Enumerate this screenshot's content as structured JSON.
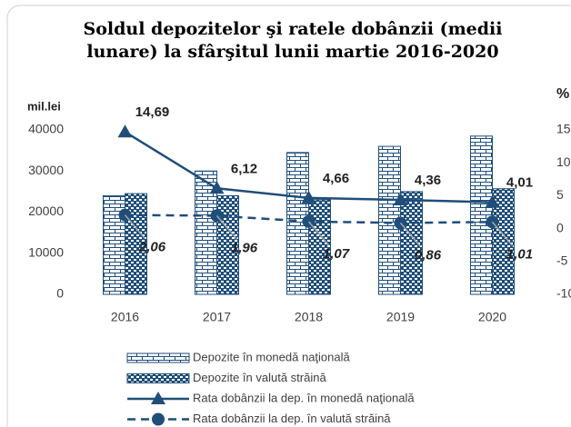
{
  "chart_data": {
    "type": "bar-line",
    "title": [
      "Soldul depozitelor şi ratele dobânzii (medii",
      "lunare) la sfârşitul lunii martie 2016-2020"
    ],
    "y_label": "mil.lei",
    "y2_label": "%",
    "categories": [
      "2016",
      "2017",
      "2018",
      "2019",
      "2020"
    ],
    "ylim": [
      0,
      40000
    ],
    "yticks": [
      0,
      10000,
      20000,
      30000,
      40000
    ],
    "y2lim": [
      -10,
      15
    ],
    "y2ticks": [
      -10,
      -5,
      0,
      5,
      10,
      15
    ],
    "series": [
      {
        "name": "Depozite în monedă naţională",
        "type": "bar",
        "pattern": "brick",
        "color": "#1f4e79",
        "values": [
          24000,
          30000,
          34500,
          36000,
          38500
        ]
      },
      {
        "name": "Depozite în valută străină",
        "type": "bar",
        "pattern": "weave",
        "color": "#1f4e79",
        "values": [
          24500,
          24000,
          23000,
          25000,
          25700
        ]
      },
      {
        "name": "Rata dobânzii la dep. în monedă naţională",
        "type": "line",
        "axis": "y2",
        "marker": "triangle",
        "dashed": false,
        "color": "#1f4e79",
        "values": [
          14.69,
          6.12,
          4.66,
          4.36,
          4.01
        ],
        "value_labels": [
          "14,69",
          "6,12",
          "4,66",
          "4,36",
          "4,01"
        ]
      },
      {
        "name": "Rata dobânzii la dep. în valută străină",
        "type": "line",
        "axis": "y2",
        "marker": "circle",
        "dashed": true,
        "color": "#1f4e79",
        "values": [
          2.06,
          1.96,
          1.07,
          0.86,
          1.01
        ],
        "value_labels": [
          "2,06",
          "1,96",
          "1,07",
          "0,86",
          "1,01"
        ]
      }
    ]
  }
}
